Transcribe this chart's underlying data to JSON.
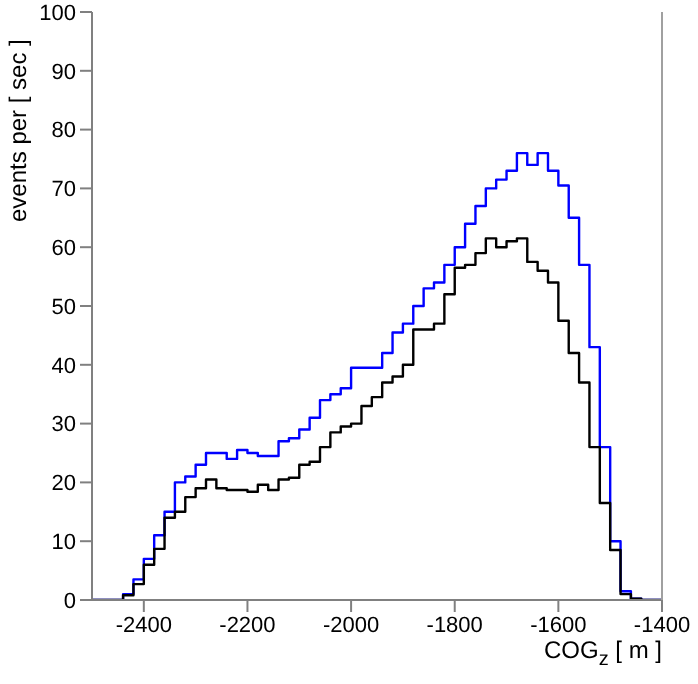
{
  "chart_data": {
    "type": "histogram",
    "xlabel": "COG$_{z}$ [ m ]",
    "ylabel": "events per [ sec ]",
    "bins": [
      -2500,
      -2480,
      -2460,
      -2440,
      -2420,
      -2400,
      -2380,
      -2360,
      -2340,
      -2320,
      -2300,
      -2280,
      -2260,
      -2240,
      -2220,
      -2200,
      -2180,
      -2160,
      -2140,
      -2120,
      -2100,
      -2080,
      -2060,
      -2040,
      -2020,
      -2000,
      -1980,
      -1960,
      -1940,
      -1920,
      -1900,
      -1880,
      -1860,
      -1840,
      -1820,
      -1800,
      -1780,
      -1760,
      -1740,
      -1720,
      -1700,
      -1680,
      -1660,
      -1640,
      -1620,
      -1600,
      -1580,
      -1560,
      -1540,
      -1520,
      -1500,
      -1480,
      -1460,
      -1440,
      -1420,
      -1400
    ],
    "series": [
      {
        "color": "#0000ff",
        "values": [
          0,
          0,
          0,
          1,
          3.5,
          7,
          11,
          15,
          20,
          21,
          23,
          25,
          25,
          24,
          25.5,
          25,
          24.5,
          24.5,
          27,
          27.5,
          29,
          31,
          34,
          35,
          36,
          39.5,
          39.5,
          39.5,
          42,
          45.5,
          47,
          50,
          53,
          54,
          57,
          60,
          64,
          67,
          70,
          71.5,
          73,
          76,
          74,
          76,
          73,
          70.5,
          65,
          57,
          43,
          26,
          10,
          1.5,
          0.2,
          0,
          0
        ]
      },
      {
        "color": "#000000",
        "values": [
          0,
          0,
          0,
          0.8,
          2.7,
          6,
          8.7,
          14,
          15,
          17.5,
          19,
          20.5,
          19,
          18.7,
          18.7,
          18.4,
          19.6,
          18.7,
          20.5,
          20.8,
          23,
          23.5,
          26,
          28.5,
          29.5,
          30,
          33,
          34.5,
          37,
          38,
          40,
          46,
          46,
          47,
          52,
          56.5,
          57,
          59,
          61.5,
          60,
          61,
          61.5,
          57.5,
          56,
          54,
          47.5,
          42,
          37,
          26,
          16.5,
          8.5,
          1,
          0.2,
          0,
          0
        ]
      }
    ],
    "xlim": [
      -2500,
      -1400
    ],
    "xticks": [
      -2400,
      -2200,
      -2000,
      -1800,
      -1600,
      -1400
    ],
    "ylim": [
      0,
      100
    ],
    "yticks": [
      0,
      10,
      20,
      30,
      40,
      50,
      60,
      70,
      80,
      90,
      100
    ]
  }
}
